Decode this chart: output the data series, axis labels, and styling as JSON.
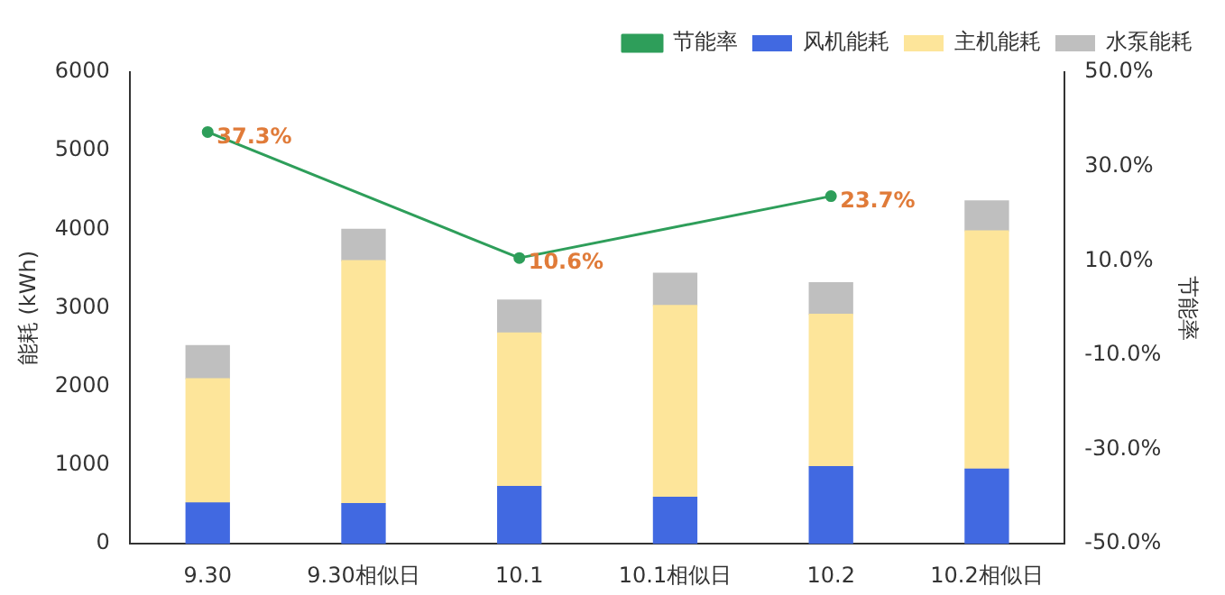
{
  "chart_data": {
    "type": "bar",
    "stacked": true,
    "xlabel": null,
    "ylabel": "能耗 (kWh)",
    "y2label": "节能率",
    "categories": [
      "9.30",
      "9.30相似日",
      "10.1",
      "10.1相似日",
      "10.2",
      "10.2相似日"
    ],
    "series": [
      {
        "name": "风机能耗",
        "color": "#4169e1",
        "values": [
          520,
          510,
          730,
          590,
          980,
          950
        ]
      },
      {
        "name": "主机能耗",
        "color": "#fde59a",
        "values": [
          1580,
          3090,
          1950,
          2440,
          1940,
          3030
        ]
      },
      {
        "name": "水泵能耗",
        "color": "#bfbfbf",
        "values": [
          420,
          400,
          420,
          410,
          400,
          380
        ]
      },
      {
        "name": "节能率",
        "type": "line",
        "axis": "y2",
        "color": "#2e9e5a",
        "values": [
          37.3,
          null,
          10.6,
          null,
          23.7,
          null
        ],
        "value_labels": [
          "37.3%",
          null,
          "10.6%",
          null,
          "23.7%",
          null
        ]
      }
    ],
    "ylim": [
      0,
      6000
    ],
    "yticks": [
      0,
      1000,
      2000,
      3000,
      4000,
      5000,
      6000
    ],
    "y2lim": [
      -50,
      50
    ],
    "y2ticks": [
      {
        "value": -50,
        "label": "-50.0%"
      },
      {
        "value": -30,
        "label": "-30.0%"
      },
      {
        "value": -10,
        "label": "-10.0%"
      },
      {
        "value": 10,
        "label": "10.0%"
      },
      {
        "value": 30,
        "label": "30.0%"
      },
      {
        "value": 50,
        "label": "50.0%"
      }
    ],
    "legend": "top right",
    "grid": false,
    "marker": "circle",
    "line_style": "solid"
  }
}
